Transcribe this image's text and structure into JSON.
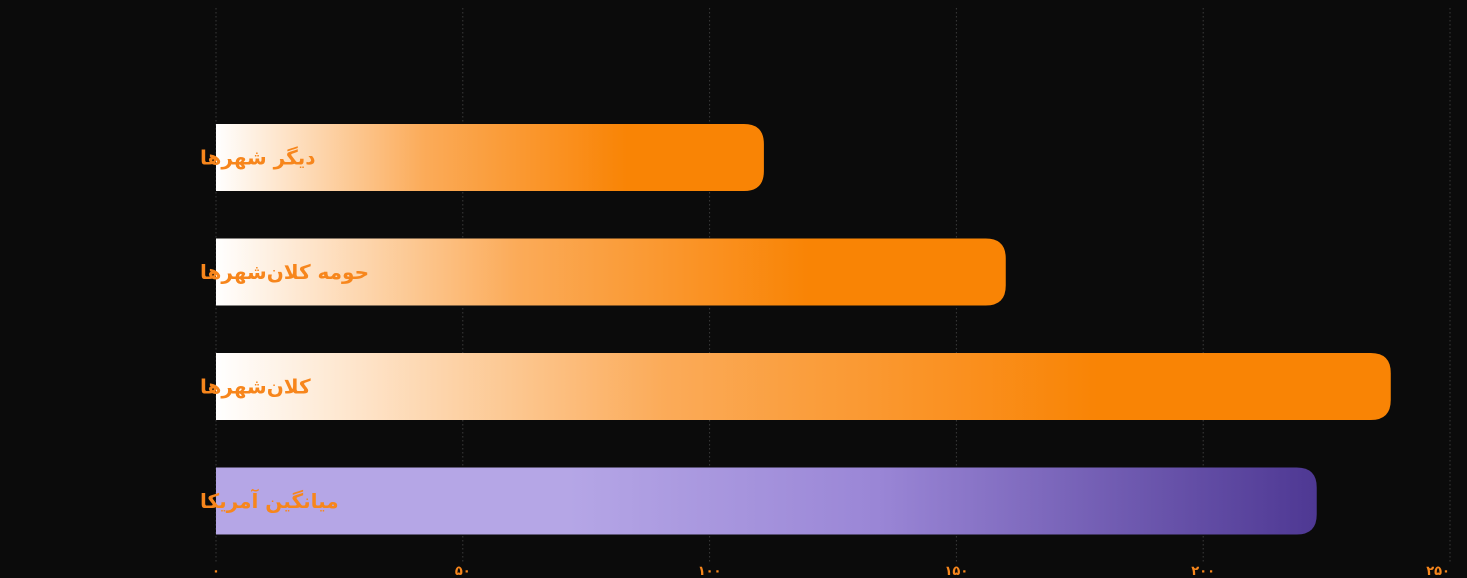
{
  "chart_data": {
    "type": "bar",
    "orientation": "horizontal",
    "categories": [
      "دیگر شهرها",
      "حومه کلان‌شهرها",
      "کلان‌شهرها",
      "میانگین آمریکا"
    ],
    "values": [
      111,
      160,
      238,
      223
    ],
    "xlim": [
      0,
      250
    ],
    "xticks": [
      0,
      50,
      100,
      150,
      200,
      250
    ],
    "xtick_labels": [
      "۰",
      "۵۰",
      "۱۰۰",
      "۱۵۰",
      "۲۰۰",
      "۲۵۰"
    ],
    "grid": "vertical-dotted",
    "title": "",
    "xlabel": "",
    "ylabel": "",
    "colors": {
      "background": "#0b0b0b",
      "label": "#f7861c",
      "tick": "#f7861c",
      "grid": "#3a3a3a",
      "orange_start": "#ffffff",
      "orange_mid": "#fbab59",
      "orange_end": "#f98405",
      "purple_start": "#b5a6e6",
      "purple_mid": "#9a86d6",
      "purple_end": "#4e3893"
    },
    "bar_styles": [
      "orange",
      "orange",
      "orange",
      "purple"
    ]
  }
}
